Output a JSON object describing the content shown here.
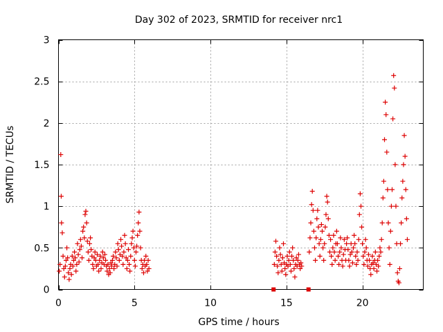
{
  "chart_data": {
    "type": "scatter",
    "title": "Day 302 of 2023, SRMTID for receiver nrc1",
    "xlabel": "GPS time / hours",
    "ylabel": "SRMTID / TECUs",
    "xlim": [
      0,
      24
    ],
    "ylim": [
      0,
      3
    ],
    "xticks": [
      0,
      5,
      10,
      15,
      20
    ],
    "xtick_labels": [
      "0",
      "5",
      "10",
      "15",
      "20"
    ],
    "yticks": [
      0,
      0.5,
      1,
      1.5,
      2,
      2.5,
      3
    ],
    "ytick_labels": [
      "0",
      "0.5",
      "1",
      "1.5",
      "2",
      "2.5",
      "3"
    ],
    "grid": true,
    "marker": "plus",
    "color": "#dd0000",
    "series": [
      {
        "name": "SRMTID",
        "points": [
          [
            0.05,
            0.22
          ],
          [
            0.1,
            0.3
          ],
          [
            0.15,
            1.62
          ],
          [
            0.18,
            1.12
          ],
          [
            0.2,
            0.8
          ],
          [
            0.25,
            0.68
          ],
          [
            0.3,
            0.4
          ],
          [
            0.35,
            0.25
          ],
          [
            0.4,
            0.15
          ],
          [
            0.45,
            0.28
          ],
          [
            0.5,
            0.35
          ],
          [
            0.55,
            0.5
          ],
          [
            0.6,
            0.38
          ],
          [
            0.65,
            0.2
          ],
          [
            0.7,
            0.12
          ],
          [
            0.75,
            0.25
          ],
          [
            0.8,
            0.3
          ],
          [
            0.85,
            0.18
          ],
          [
            0.9,
            0.4
          ],
          [
            0.95,
            0.28
          ],
          [
            1.0,
            0.35
          ],
          [
            1.05,
            0.45
          ],
          [
            1.1,
            0.38
          ],
          [
            1.15,
            0.22
          ],
          [
            1.2,
            0.3
          ],
          [
            1.25,
            0.55
          ],
          [
            1.3,
            0.42
          ],
          [
            1.35,
            0.33
          ],
          [
            1.4,
            0.48
          ],
          [
            1.45,
            0.6
          ],
          [
            1.5,
            0.52
          ],
          [
            1.55,
            0.38
          ],
          [
            1.6,
            0.7
          ],
          [
            1.65,
            0.75
          ],
          [
            1.7,
            0.62
          ],
          [
            1.75,
            0.9
          ],
          [
            1.8,
            0.94
          ],
          [
            1.85,
            0.8
          ],
          [
            1.9,
            0.58
          ],
          [
            1.95,
            0.45
          ],
          [
            2.0,
            0.35
          ],
          [
            2.05,
            0.55
          ],
          [
            2.1,
            0.62
          ],
          [
            2.15,
            0.48
          ],
          [
            2.2,
            0.4
          ],
          [
            2.25,
            0.3
          ],
          [
            2.3,
            0.25
          ],
          [
            2.35,
            0.38
          ],
          [
            2.4,
            0.45
          ],
          [
            2.45,
            0.35
          ],
          [
            2.5,
            0.28
          ],
          [
            2.55,
            0.42
          ],
          [
            2.6,
            0.3
          ],
          [
            2.65,
            0.22
          ],
          [
            2.7,
            0.35
          ],
          [
            2.75,
            0.4
          ],
          [
            2.8,
            0.25
          ],
          [
            2.85,
            0.32
          ],
          [
            2.9,
            0.45
          ],
          [
            2.95,
            0.38
          ],
          [
            3.0,
            0.3
          ],
          [
            3.05,
            0.42
          ],
          [
            3.1,
            0.35
          ],
          [
            3.15,
            0.28
          ],
          [
            3.2,
            0.22
          ],
          [
            3.25,
            0.3
          ],
          [
            3.3,
            0.18
          ],
          [
            3.35,
            0.25
          ],
          [
            3.4,
            0.2
          ],
          [
            3.45,
            0.32
          ],
          [
            3.5,
            0.28
          ],
          [
            3.55,
            0.35
          ],
          [
            3.6,
            0.4
          ],
          [
            3.65,
            0.25
          ],
          [
            3.7,
            0.3
          ],
          [
            3.75,
            0.45
          ],
          [
            3.8,
            0.38
          ],
          [
            3.85,
            0.28
          ],
          [
            3.9,
            0.55
          ],
          [
            3.95,
            0.48
          ],
          [
            4.0,
            0.35
          ],
          [
            4.05,
            0.42
          ],
          [
            4.1,
            0.6
          ],
          [
            4.15,
            0.52
          ],
          [
            4.2,
            0.4
          ],
          [
            4.25,
            0.3
          ],
          [
            4.3,
            0.45
          ],
          [
            4.35,
            0.65
          ],
          [
            4.4,
            0.55
          ],
          [
            4.45,
            0.38
          ],
          [
            4.5,
            0.25
          ],
          [
            4.55,
            0.35
          ],
          [
            4.6,
            0.48
          ],
          [
            4.65,
            0.3
          ],
          [
            4.7,
            0.22
          ],
          [
            4.75,
            0.4
          ],
          [
            4.8,
            0.55
          ],
          [
            4.85,
            0.62
          ],
          [
            4.9,
            0.7
          ],
          [
            4.95,
            0.5
          ],
          [
            5.0,
            0.35
          ],
          [
            5.05,
            0.28
          ],
          [
            5.1,
            0.45
          ],
          [
            5.15,
            0.52
          ],
          [
            5.2,
            0.65
          ],
          [
            5.25,
            0.8
          ],
          [
            5.3,
            0.93
          ],
          [
            5.35,
            0.7
          ],
          [
            5.4,
            0.5
          ],
          [
            5.45,
            0.35
          ],
          [
            5.5,
            0.25
          ],
          [
            5.55,
            0.3
          ],
          [
            5.6,
            0.2
          ],
          [
            5.65,
            0.35
          ],
          [
            5.7,
            0.28
          ],
          [
            5.75,
            0.4
          ],
          [
            5.8,
            0.3
          ],
          [
            5.85,
            0.22
          ],
          [
            5.9,
            0.35
          ],
          [
            5.95,
            0.25
          ],
          [
            14.2,
            0.3
          ],
          [
            14.25,
            0.45
          ],
          [
            14.3,
            0.58
          ],
          [
            14.35,
            0.4
          ],
          [
            14.4,
            0.28
          ],
          [
            14.45,
            0.2
          ],
          [
            14.5,
            0.35
          ],
          [
            14.55,
            0.5
          ],
          [
            14.6,
            0.42
          ],
          [
            14.65,
            0.3
          ],
          [
            14.7,
            0.22
          ],
          [
            14.75,
            0.38
          ],
          [
            14.8,
            0.55
          ],
          [
            14.85,
            0.32
          ],
          [
            14.9,
            0.25
          ],
          [
            14.95,
            0.18
          ],
          [
            15.0,
            0.3
          ],
          [
            15.05,
            0.4
          ],
          [
            15.1,
            0.28
          ],
          [
            15.15,
            0.35
          ],
          [
            15.2,
            0.45
          ],
          [
            15.25,
            0.3
          ],
          [
            15.3,
            0.22
          ],
          [
            15.35,
            0.4
          ],
          [
            15.4,
            0.5
          ],
          [
            15.45,
            0.35
          ],
          [
            15.5,
            0.25
          ],
          [
            15.55,
            0.15
          ],
          [
            15.6,
            0.3
          ],
          [
            15.65,
            0.38
          ],
          [
            15.7,
            0.28
          ],
          [
            15.75,
            0.35
          ],
          [
            15.8,
            0.42
          ],
          [
            15.85,
            0.3
          ],
          [
            15.9,
            0.25
          ],
          [
            15.95,
            0.32
          ],
          [
            16.0,
            0.28
          ],
          [
            16.5,
            0.45
          ],
          [
            16.55,
            0.62
          ],
          [
            16.6,
            0.8
          ],
          [
            16.65,
            1.02
          ],
          [
            16.7,
            1.18
          ],
          [
            16.75,
            0.95
          ],
          [
            16.8,
            0.7
          ],
          [
            16.85,
            0.5
          ],
          [
            16.9,
            0.35
          ],
          [
            16.95,
            0.62
          ],
          [
            17.0,
            0.85
          ],
          [
            17.05,
            0.95
          ],
          [
            17.1,
            0.75
          ],
          [
            17.15,
            0.55
          ],
          [
            17.2,
            0.4
          ],
          [
            17.25,
            0.6
          ],
          [
            17.3,
            0.78
          ],
          [
            17.35,
            0.7
          ],
          [
            17.4,
            0.5
          ],
          [
            17.45,
            0.35
          ],
          [
            17.5,
            0.55
          ],
          [
            17.55,
            0.75
          ],
          [
            17.6,
            0.9
          ],
          [
            17.65,
            1.12
          ],
          [
            17.7,
            1.05
          ],
          [
            17.75,
            0.85
          ],
          [
            17.8,
            0.65
          ],
          [
            17.85,
            0.45
          ],
          [
            17.9,
            0.6
          ],
          [
            17.95,
            0.4
          ],
          [
            18.0,
            0.3
          ],
          [
            18.05,
            0.5
          ],
          [
            18.1,
            0.65
          ],
          [
            18.15,
            0.45
          ],
          [
            18.2,
            0.35
          ],
          [
            18.25,
            0.55
          ],
          [
            18.3,
            0.7
          ],
          [
            18.35,
            0.55
          ],
          [
            18.4,
            0.4
          ],
          [
            18.45,
            0.3
          ],
          [
            18.5,
            0.45
          ],
          [
            18.55,
            0.62
          ],
          [
            18.6,
            0.5
          ],
          [
            18.65,
            0.35
          ],
          [
            18.7,
            0.28
          ],
          [
            18.75,
            0.42
          ],
          [
            18.8,
            0.6
          ],
          [
            18.85,
            0.48
          ],
          [
            18.9,
            0.35
          ],
          [
            18.95,
            0.55
          ],
          [
            19.0,
            0.62
          ],
          [
            19.05,
            0.48
          ],
          [
            19.1,
            0.35
          ],
          [
            19.15,
            0.28
          ],
          [
            19.2,
            0.42
          ],
          [
            19.25,
            0.55
          ],
          [
            19.3,
            0.45
          ],
          [
            19.35,
            0.32
          ],
          [
            19.4,
            0.5
          ],
          [
            19.45,
            0.65
          ],
          [
            19.5,
            0.55
          ],
          [
            19.55,
            0.4
          ],
          [
            19.6,
            0.3
          ],
          [
            19.65,
            0.45
          ],
          [
            19.7,
            0.35
          ],
          [
            19.75,
            0.6
          ],
          [
            19.8,
            0.9
          ],
          [
            19.85,
            1.15
          ],
          [
            19.9,
            1.0
          ],
          [
            19.95,
            0.75
          ],
          [
            20.0,
            0.55
          ],
          [
            20.05,
            0.4
          ],
          [
            20.1,
            0.3
          ],
          [
            20.15,
            0.45
          ],
          [
            20.2,
            0.6
          ],
          [
            20.25,
            0.5
          ],
          [
            20.3,
            0.35
          ],
          [
            20.35,
            0.28
          ],
          [
            20.4,
            0.42
          ],
          [
            20.45,
            0.35
          ],
          [
            20.5,
            0.25
          ],
          [
            20.55,
            0.18
          ],
          [
            20.6,
            0.3
          ],
          [
            20.65,
            0.4
          ],
          [
            20.7,
            0.32
          ],
          [
            20.75,
            0.25
          ],
          [
            20.8,
            0.35
          ],
          [
            20.85,
            0.45
          ],
          [
            20.9,
            0.3
          ],
          [
            20.95,
            0.22
          ],
          [
            21.0,
            0.35
          ],
          [
            21.05,
            0.28
          ],
          [
            21.1,
            0.4
          ],
          [
            21.15,
            0.5
          ],
          [
            21.2,
            0.45
          ],
          [
            21.25,
            0.6
          ],
          [
            21.3,
            0.8
          ],
          [
            21.35,
            1.1
          ],
          [
            21.4,
            1.3
          ],
          [
            21.45,
            1.8
          ],
          [
            21.5,
            2.25
          ],
          [
            21.55,
            2.1
          ],
          [
            21.6,
            1.65
          ],
          [
            21.65,
            1.2
          ],
          [
            21.7,
            0.8
          ],
          [
            21.75,
            0.5
          ],
          [
            21.8,
            0.3
          ],
          [
            21.85,
            0.7
          ],
          [
            21.9,
            1.0
          ],
          [
            21.95,
            1.2
          ],
          [
            22.0,
            2.05
          ],
          [
            22.05,
            2.57
          ],
          [
            22.1,
            2.42
          ],
          [
            22.15,
            1.5
          ],
          [
            22.2,
            1.0
          ],
          [
            22.25,
            0.55
          ],
          [
            22.3,
            0.2
          ],
          [
            22.35,
            0.1
          ],
          [
            22.4,
            0.08
          ],
          [
            22.45,
            0.25
          ],
          [
            22.5,
            0.55
          ],
          [
            22.55,
            0.8
          ],
          [
            22.6,
            1.1
          ],
          [
            22.65,
            1.3
          ],
          [
            22.7,
            1.5
          ],
          [
            22.75,
            1.85
          ],
          [
            22.8,
            1.6
          ],
          [
            22.85,
            1.2
          ],
          [
            22.9,
            0.85
          ],
          [
            22.95,
            0.6
          ]
        ]
      }
    ],
    "extra_markers": [
      {
        "shape": "square",
        "x": 14.15,
        "y": 0
      },
      {
        "shape": "square",
        "x": 16.45,
        "y": 0
      }
    ]
  }
}
